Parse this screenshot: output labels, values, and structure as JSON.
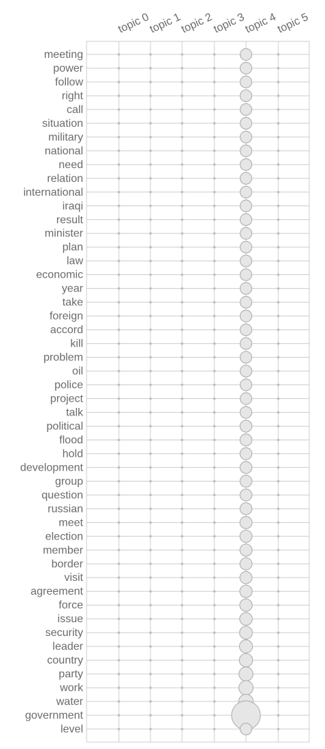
{
  "chart_data": {
    "type": "scatter",
    "chart_kind": "term-topic bubble matrix",
    "grid": true,
    "topics": [
      "topic 0",
      "topic 1",
      "topic 2",
      "topic 3",
      "topic 4",
      "topic 5"
    ],
    "terms": [
      "meeting",
      "power",
      "follow",
      "right",
      "call",
      "situation",
      "military",
      "national",
      "need",
      "relation",
      "international",
      "iraqi",
      "result",
      "minister",
      "plan",
      "law",
      "economic",
      "year",
      "take",
      "foreign",
      "accord",
      "kill",
      "problem",
      "oil",
      "police",
      "project",
      "talk",
      "political",
      "flood",
      "hold",
      "development",
      "group",
      "question",
      "russian",
      "meet",
      "election",
      "member",
      "border",
      "visit",
      "agreement",
      "force",
      "issue",
      "security",
      "leader",
      "country",
      "party",
      "work",
      "water",
      "government",
      "level"
    ],
    "active_topic": "topic 4",
    "weights_topic_4": [
      0.27,
      0.27,
      0.27,
      0.27,
      0.27,
      0.27,
      0.27,
      0.27,
      0.27,
      0.27,
      0.27,
      0.27,
      0.27,
      0.27,
      0.27,
      0.27,
      0.27,
      0.27,
      0.27,
      0.27,
      0.27,
      0.27,
      0.27,
      0.27,
      0.27,
      0.27,
      0.27,
      0.28,
      0.28,
      0.28,
      0.28,
      0.28,
      0.28,
      0.28,
      0.29,
      0.29,
      0.29,
      0.29,
      0.29,
      0.3,
      0.3,
      0.31,
      0.32,
      0.33,
      0.34,
      0.37,
      0.38,
      0.39,
      1.0,
      0.27
    ],
    "other_topics_weight": 0.02
  }
}
